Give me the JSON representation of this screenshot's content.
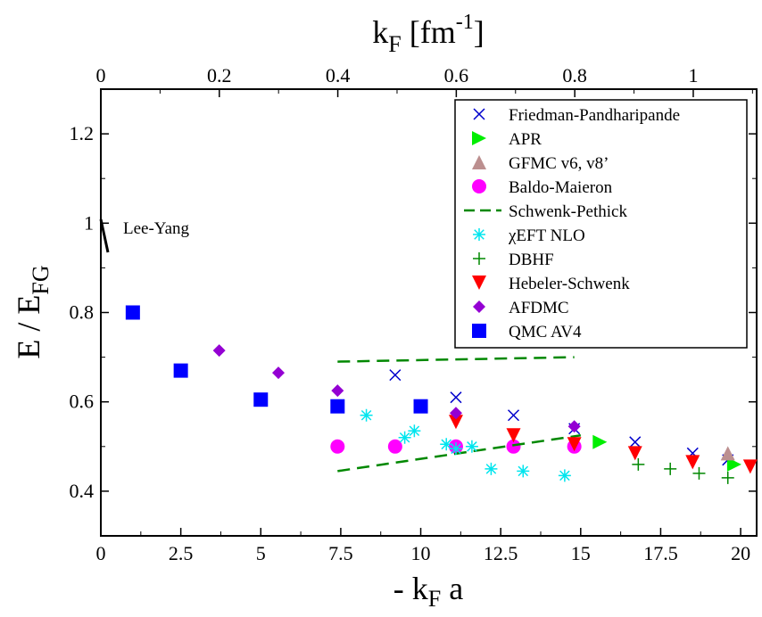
{
  "chart_data": {
    "type": "scatter",
    "x_axis": {
      "label": "- k_F a",
      "range": [
        0,
        20.5
      ],
      "ticks": [
        "0",
        "2.5",
        "5",
        "7.5",
        "10",
        "12.5",
        "15",
        "17.5",
        "20"
      ],
      "tick_values": [
        0,
        2.5,
        5,
        7.5,
        10,
        12.5,
        15,
        17.5,
        20
      ]
    },
    "x2_axis": {
      "label": "k_F [fm^-1]",
      "range": [
        0,
        1.107
      ],
      "ticks": [
        "0",
        "0.2",
        "0.4",
        "0.6",
        "0.8",
        "1"
      ],
      "tick_values": [
        0,
        0.2,
        0.4,
        0.6,
        0.8,
        1.0
      ]
    },
    "y_axis": {
      "label": "E / E_FG",
      "range": [
        0.3,
        1.3
      ],
      "ticks": [
        "0.4",
        "0.6",
        "0.8",
        "1",
        "1.2"
      ],
      "tick_values": [
        0.4,
        0.6,
        0.8,
        1.0,
        1.2
      ]
    },
    "annotations": [
      {
        "text": "Lee-Yang",
        "x": 0.2,
        "y": 0.97
      }
    ],
    "legend_position": "top-right",
    "series": [
      {
        "name": "Friedman-Pandharipande",
        "marker": "x",
        "color": "#0000cc",
        "x": [
          9.2,
          11.1,
          12.9,
          14.8,
          16.7,
          18.5,
          19.6
        ],
        "y": [
          0.66,
          0.61,
          0.57,
          0.54,
          0.51,
          0.485,
          0.47
        ]
      },
      {
        "name": "APR",
        "marker": "triangle-right",
        "color": "#00ee00",
        "x": [
          15.6,
          19.8
        ],
        "y": [
          0.51,
          0.46
        ]
      },
      {
        "name": "GFMC v6, v8’",
        "marker": "triangle-up",
        "color": "#bc8f8f",
        "x": [
          19.6
        ],
        "y": [
          0.485
        ]
      },
      {
        "name": "Baldo-Maieron",
        "marker": "circle",
        "color": "#ff00ff",
        "x": [
          7.4,
          9.2,
          11.1,
          12.9,
          14.8
        ],
        "y": [
          0.5,
          0.5,
          0.5,
          0.5,
          0.5
        ]
      },
      {
        "name": "Schwenk-Pethick",
        "marker": "dash",
        "color": "#008800",
        "lines": [
          {
            "x": [
              7.4,
              14.8
            ],
            "y": [
              0.69,
              0.7
            ]
          },
          {
            "x": [
              7.4,
              15.0
            ],
            "y": [
              0.445,
              0.525
            ]
          }
        ]
      },
      {
        "name": "χEFT NLO",
        "marker": "asterisk",
        "color": "#00e5ee",
        "x": [
          8.3,
          9.5,
          9.8,
          10.8,
          11.1,
          11.6,
          12.2,
          13.2,
          14.5
        ],
        "y": [
          0.57,
          0.52,
          0.535,
          0.505,
          0.495,
          0.5,
          0.45,
          0.445,
          0.435
        ]
      },
      {
        "name": "DBHF",
        "marker": "plus",
        "color": "#008800",
        "x": [
          16.8,
          17.8,
          18.7,
          19.6
        ],
        "y": [
          0.46,
          0.45,
          0.44,
          0.43
        ]
      },
      {
        "name": "Hebeler-Schwenk",
        "marker": "triangle-down",
        "color": "#ff0000",
        "x": [
          11.1,
          12.9,
          14.8,
          16.7,
          18.5,
          20.3
        ],
        "y": [
          0.555,
          0.525,
          0.505,
          0.485,
          0.465,
          0.455
        ]
      },
      {
        "name": "AFDMC",
        "marker": "diamond",
        "color": "#9400d3",
        "x": [
          3.7,
          5.55,
          7.4,
          11.1,
          14.8
        ],
        "y": [
          0.715,
          0.665,
          0.625,
          0.575,
          0.545
        ]
      },
      {
        "name": "QMC AV4",
        "marker": "square",
        "color": "#0000ff",
        "x": [
          1.0,
          2.5,
          5.0,
          7.4,
          10.0
        ],
        "y": [
          0.8,
          0.67,
          0.605,
          0.59,
          0.59
        ]
      }
    ]
  }
}
